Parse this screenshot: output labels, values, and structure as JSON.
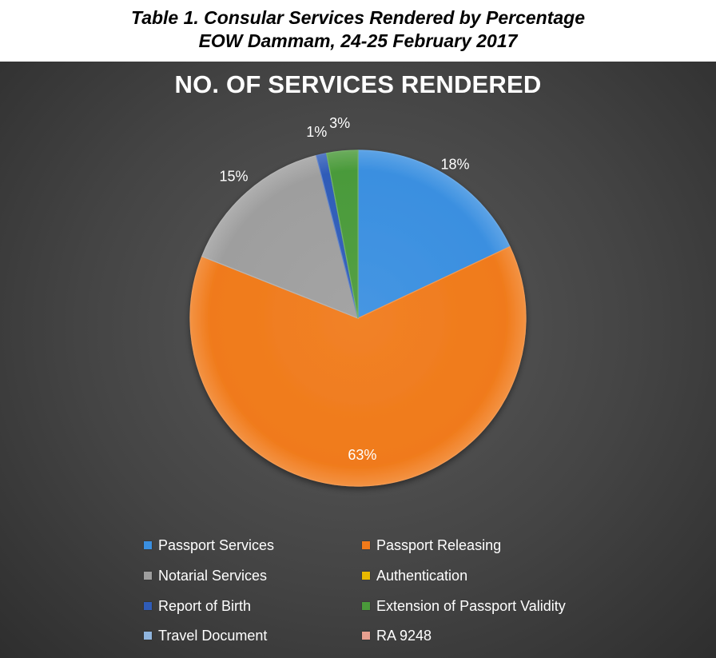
{
  "caption": {
    "line1": "Table 1.  Consular Services Rendered by Percentage",
    "line2": "EOW Dammam, 24-25 February 2017"
  },
  "chart_data": {
    "type": "pie",
    "title": "NO. OF SERVICES RENDERED",
    "legend_position": "bottom",
    "slices": [
      {
        "name": "Passport Services",
        "value": 18,
        "label": "18%",
        "color": "#3a8fe0"
      },
      {
        "name": "Passport Releasing",
        "value": 63,
        "label": "63%",
        "color": "#f07a1a"
      },
      {
        "name": "Notarial Services",
        "value": 15,
        "label": "15%",
        "color": "#9e9e9e"
      },
      {
        "name": "Authentication",
        "value": 0,
        "label": "",
        "color": "#e8b800"
      },
      {
        "name": "Report of Birth",
        "value": 1,
        "label": "1%",
        "color": "#2f5cb8"
      },
      {
        "name": "Extension of Passport Validity",
        "value": 3,
        "label": "3%",
        "color": "#4a9a3a"
      },
      {
        "name": "Travel Document",
        "value": 0,
        "label": "",
        "color": "#8fb4dd"
      },
      {
        "name": "RA 9248",
        "value": 0,
        "label": "",
        "color": "#e8a090"
      }
    ]
  }
}
